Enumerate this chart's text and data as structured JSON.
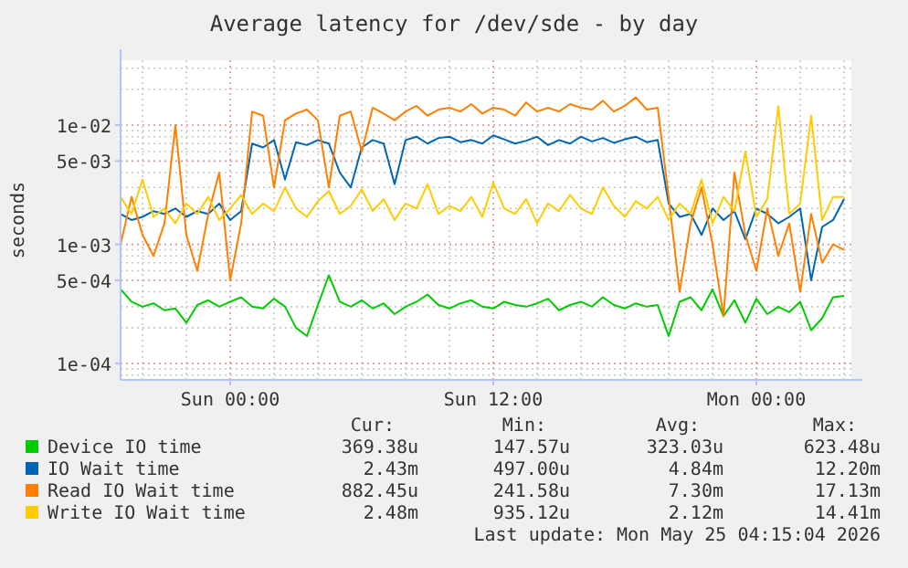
{
  "chart_data": {
    "type": "line",
    "title": "Average latency for /dev/sde - by day",
    "ylabel": "seconds",
    "log": "y",
    "grid": true,
    "legend": "bottom",
    "marker": "none",
    "line_style": "solid",
    "x": [
      "2026-05-23T19:00",
      "2026-05-23T19:30",
      "2026-05-23T20:00",
      "2026-05-23T20:30",
      "2026-05-23T21:00",
      "2026-05-23T21:30",
      "2026-05-23T22:00",
      "2026-05-23T22:30",
      "2026-05-23T23:00",
      "2026-05-23T23:30",
      "2026-05-24T00:00",
      "2026-05-24T00:30",
      "2026-05-24T01:00",
      "2026-05-24T01:30",
      "2026-05-24T02:00",
      "2026-05-24T02:30",
      "2026-05-24T03:00",
      "2026-05-24T03:30",
      "2026-05-24T04:00",
      "2026-05-24T04:30",
      "2026-05-24T05:00",
      "2026-05-24T05:30",
      "2026-05-24T06:00",
      "2026-05-24T06:30",
      "2026-05-24T07:00",
      "2026-05-24T07:30",
      "2026-05-24T08:00",
      "2026-05-24T08:30",
      "2026-05-24T09:00",
      "2026-05-24T09:30",
      "2026-05-24T10:00",
      "2026-05-24T10:30",
      "2026-05-24T11:00",
      "2026-05-24T11:30",
      "2026-05-24T12:00",
      "2026-05-24T12:30",
      "2026-05-24T13:00",
      "2026-05-24T13:30",
      "2026-05-24T14:00",
      "2026-05-24T14:30",
      "2026-05-24T15:00",
      "2026-05-24T15:30",
      "2026-05-24T16:00",
      "2026-05-24T16:30",
      "2026-05-24T17:00",
      "2026-05-24T17:30",
      "2026-05-24T18:00",
      "2026-05-24T18:30",
      "2026-05-24T19:00",
      "2026-05-24T19:30",
      "2026-05-24T20:00",
      "2026-05-24T20:30",
      "2026-05-24T21:00",
      "2026-05-24T21:30",
      "2026-05-24T22:00",
      "2026-05-24T22:30",
      "2026-05-24T23:00",
      "2026-05-24T23:30",
      "2026-05-25T00:00",
      "2026-05-25T00:30",
      "2026-05-25T01:00",
      "2026-05-25T01:30",
      "2026-05-25T02:00",
      "2026-05-25T02:30",
      "2026-05-25T03:00",
      "2026-05-25T03:30",
      "2026-05-25T04:00"
    ],
    "xlim": [
      "2026-05-23T19:00",
      "2026-05-25T04:20"
    ],
    "xticks": [
      {
        "value": "2026-05-24T00:00",
        "label": "Sun 00:00"
      },
      {
        "value": "2026-05-24T12:00",
        "label": "Sun 12:00"
      },
      {
        "value": "2026-05-25T00:00",
        "label": "Mon 00:00"
      }
    ],
    "ylim": [
      7.3e-05,
      0.035
    ],
    "yticks": [
      {
        "value": 0.0001,
        "label": "1e-04"
      },
      {
        "value": 0.0005,
        "label": "5e-04"
      },
      {
        "value": 0.001,
        "label": "1e-03"
      },
      {
        "value": 0.005,
        "label": "5e-03"
      },
      {
        "value": 0.01,
        "label": "1e-02"
      }
    ],
    "series": [
      {
        "name": "Device IO time",
        "color": "#00cc00",
        "values": [
          0.00042,
          0.00033,
          0.0003,
          0.00032,
          0.00028,
          0.00029,
          0.00022,
          0.00031,
          0.00034,
          0.0003,
          0.00033,
          0.00036,
          0.0003,
          0.00029,
          0.00035,
          0.0003,
          0.0002,
          0.00017,
          0.00031,
          0.00055,
          0.00033,
          0.0003,
          0.00034,
          0.00029,
          0.00032,
          0.00026,
          0.0003,
          0.00033,
          0.00038,
          0.00031,
          0.00029,
          0.00032,
          0.00034,
          0.0003,
          0.00029,
          0.00033,
          0.00031,
          0.0003,
          0.00032,
          0.00035,
          0.00028,
          0.00031,
          0.00033,
          0.0003,
          0.00036,
          0.00031,
          0.00029,
          0.00032,
          0.0003,
          0.00031,
          0.00017,
          0.00033,
          0.00036,
          0.00028,
          0.00042,
          0.00025,
          0.00034,
          0.00022,
          0.00035,
          0.00026,
          0.0003,
          0.00027,
          0.00033,
          0.00019,
          0.00024,
          0.00036,
          0.00037
        ]
      },
      {
        "name": "IO Wait time",
        "color": "#0066b3",
        "values": [
          0.0018,
          0.0016,
          0.0017,
          0.0019,
          0.0018,
          0.002,
          0.0017,
          0.0019,
          0.0018,
          0.0022,
          0.0016,
          0.0019,
          0.007,
          0.0065,
          0.0075,
          0.0035,
          0.0072,
          0.0068,
          0.0075,
          0.007,
          0.004,
          0.003,
          0.0065,
          0.0075,
          0.007,
          0.0032,
          0.0075,
          0.008,
          0.007,
          0.0078,
          0.008,
          0.0072,
          0.0075,
          0.007,
          0.0082,
          0.0076,
          0.007,
          0.0074,
          0.008,
          0.0068,
          0.0075,
          0.007,
          0.008,
          0.0073,
          0.0078,
          0.0071,
          0.0076,
          0.008,
          0.0072,
          0.0075,
          0.0022,
          0.0017,
          0.0018,
          0.0012,
          0.002,
          0.0016,
          0.0019,
          0.0011,
          0.002,
          0.0018,
          0.0015,
          0.0017,
          0.002,
          0.0005,
          0.0014,
          0.0016,
          0.0024
        ]
      },
      {
        "name": "Read IO Wait time",
        "color": "#ff8000",
        "values": [
          0.001,
          0.0025,
          0.0012,
          0.0008,
          0.0015,
          0.01,
          0.0012,
          0.0006,
          0.0018,
          0.004,
          0.0005,
          0.0015,
          0.013,
          0.012,
          0.003,
          0.011,
          0.0125,
          0.0135,
          0.011,
          0.003,
          0.012,
          0.013,
          0.006,
          0.014,
          0.0125,
          0.011,
          0.013,
          0.0145,
          0.012,
          0.0135,
          0.014,
          0.013,
          0.015,
          0.0125,
          0.014,
          0.0135,
          0.012,
          0.0155,
          0.013,
          0.014,
          0.013,
          0.015,
          0.014,
          0.0135,
          0.016,
          0.013,
          0.0145,
          0.0171,
          0.0135,
          0.014,
          0.0025,
          0.0004,
          0.0015,
          0.003,
          0.001,
          0.00025,
          0.004,
          0.0012,
          0.0006,
          0.002,
          0.0008,
          0.0015,
          0.0004,
          0.0018,
          0.0007,
          0.001,
          0.0009
        ]
      },
      {
        "name": "Write IO Wait time",
        "color": "#ffcc00",
        "values": [
          0.0025,
          0.0018,
          0.0035,
          0.0017,
          0.002,
          0.0015,
          0.0022,
          0.0018,
          0.0025,
          0.0016,
          0.002,
          0.0026,
          0.0018,
          0.0022,
          0.0019,
          0.003,
          0.002,
          0.0017,
          0.0023,
          0.0028,
          0.0018,
          0.0021,
          0.0029,
          0.0019,
          0.0024,
          0.0016,
          0.0022,
          0.002,
          0.0032,
          0.0018,
          0.0021,
          0.0019,
          0.0025,
          0.0017,
          0.0033,
          0.002,
          0.0018,
          0.0024,
          0.0015,
          0.0022,
          0.0019,
          0.0026,
          0.002,
          0.0018,
          0.003,
          0.0021,
          0.0017,
          0.0023,
          0.002,
          0.0025,
          0.0016,
          0.0022,
          0.0018,
          0.0035,
          0.0015,
          0.0025,
          0.0019,
          0.006,
          0.0017,
          0.0024,
          0.0144,
          0.0018,
          0.0022,
          0.012,
          0.0016,
          0.0025,
          0.0025
        ]
      }
    ],
    "annotations": [
      "Cur:",
      "Min:",
      "Avg:",
      "Max:",
      "369.38u",
      "147.57u",
      "323.03u",
      "623.48u",
      "2.43m",
      "497.00u",
      "4.84m",
      "12.20m",
      "882.45u",
      "241.58u",
      "7.30m",
      "17.13m",
      "2.48m",
      "935.12u",
      "2.12m",
      "14.41m",
      "Last update: Mon May 25 04:15:04 2026"
    ]
  }
}
